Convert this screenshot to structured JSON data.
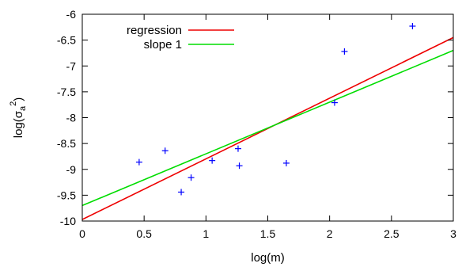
{
  "chart_data": {
    "type": "scatter",
    "xlabel": "log(m)",
    "ylabel": {
      "base": "log(σ",
      "sub": "a",
      "sup": "2",
      "close": ")"
    },
    "xlim": [
      0,
      3
    ],
    "ylim": [
      -10,
      -6
    ],
    "xticks": [
      {
        "v": 0,
        "label": "0"
      },
      {
        "v": 0.5,
        "label": "0.5"
      },
      {
        "v": 1,
        "label": "1"
      },
      {
        "v": 1.5,
        "label": "1.5"
      },
      {
        "v": 2,
        "label": "2"
      },
      {
        "v": 2.5,
        "label": "2.5"
      },
      {
        "v": 3,
        "label": "3"
      }
    ],
    "yticks": [
      {
        "v": -10,
        "label": "-10"
      },
      {
        "v": -9.5,
        "label": "-9.5"
      },
      {
        "v": -9,
        "label": "-9"
      },
      {
        "v": -8.5,
        "label": "-8.5"
      },
      {
        "v": -8,
        "label": "-8"
      },
      {
        "v": -7.5,
        "label": "-7.5"
      },
      {
        "v": -7,
        "label": "-7"
      },
      {
        "v": -6.5,
        "label": "-6.5"
      },
      {
        "v": -6,
        "label": "-6"
      }
    ],
    "grid": false,
    "legend_position": "top-left",
    "points": {
      "color": "#0000ff",
      "marker": "plus",
      "x": [
        0.46,
        0.67,
        0.8,
        0.88,
        1.05,
        1.26,
        1.27,
        1.65,
        2.04,
        2.12,
        2.67
      ],
      "y": [
        -8.86,
        -8.64,
        -9.44,
        -9.16,
        -8.83,
        -8.6,
        -8.93,
        -8.88,
        -7.71,
        -6.72,
        -6.23
      ]
    },
    "series": [
      {
        "name": "regression",
        "type": "line",
        "color": "#ee0000",
        "x": [
          0,
          3
        ],
        "y": [
          -9.97,
          -6.45
        ]
      },
      {
        "name": "slope 1",
        "type": "line",
        "color": "#00dd00",
        "x": [
          0,
          3
        ],
        "y": [
          -9.7,
          -6.7
        ]
      }
    ]
  }
}
